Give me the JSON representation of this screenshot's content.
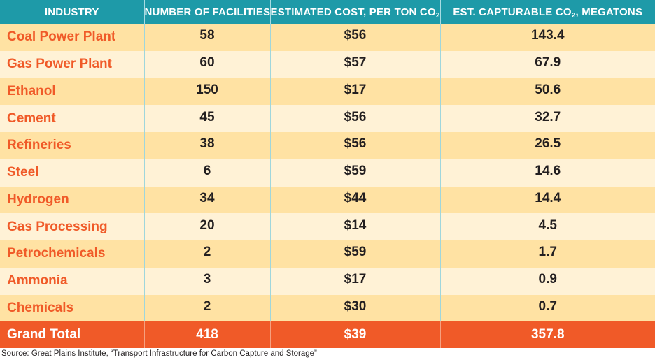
{
  "chart_data": {
    "type": "table",
    "columns": [
      {
        "label": "INDUSTRY",
        "sub": "",
        "suffix": ""
      },
      {
        "label": "NUMBER OF FACILITIES",
        "sub": "",
        "suffix": ""
      },
      {
        "label": "ESTIMATED  COST, PER TON CO",
        "sub": "2",
        "suffix": ""
      },
      {
        "label": "EST. CAPTURABLE CO",
        "sub": "2",
        "suffix": ", MEGATONS"
      }
    ],
    "rows": [
      {
        "industry": "Coal Power Plant",
        "facilities": "58",
        "cost": "$56",
        "captureable": "143.4"
      },
      {
        "industry": "Gas Power Plant",
        "facilities": "60",
        "cost": "$57",
        "captureable": "67.9"
      },
      {
        "industry": "Ethanol",
        "facilities": "150",
        "cost": "$17",
        "captureable": "50.6"
      },
      {
        "industry": "Cement",
        "facilities": "45",
        "cost": "$56",
        "captureable": "32.7"
      },
      {
        "industry": "Refineries",
        "facilities": "38",
        "cost": "$56",
        "captureable": "26.5"
      },
      {
        "industry": "Steel",
        "facilities": "6",
        "cost": "$59",
        "captureable": "14.6"
      },
      {
        "industry": "Hydrogen",
        "facilities": "34",
        "cost": "$44",
        "captureable": "14.4"
      },
      {
        "industry": "Gas Processing",
        "facilities": "20",
        "cost": "$14",
        "captureable": "4.5"
      },
      {
        "industry": "Petrochemicals",
        "facilities": "2",
        "cost": "$59",
        "captureable": "1.7"
      },
      {
        "industry": "Ammonia",
        "facilities": "3",
        "cost": "$17",
        "captureable": "0.9"
      },
      {
        "industry": "Chemicals",
        "facilities": "2",
        "cost": "$30",
        "captureable": "0.7"
      }
    ],
    "total": {
      "industry": "Grand Total",
      "facilities": "418",
      "cost": "$39",
      "captureable": "357.8"
    }
  },
  "source": "Source: Great Plains Institute, “Transport Infrastructure for Carbon Capture and Storage”",
  "colors": {
    "header_bg": "#1e9aa8",
    "row_dark": "#ffe2a3",
    "row_light": "#fff2d6",
    "industry_text": "#f05a28",
    "total_bg": "#f05a28"
  }
}
